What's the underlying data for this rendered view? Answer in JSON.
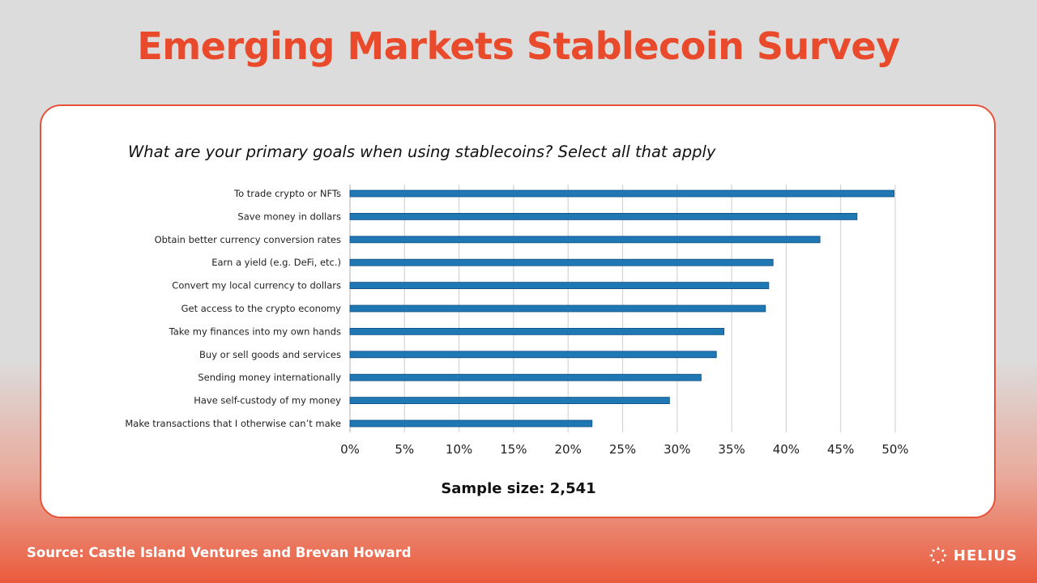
{
  "slide": {
    "title": "Emerging Markets Stablecoin Survey",
    "question": "What are your primary goals when using stablecoins? Select all that apply",
    "sample_size": "Sample size: 2,541",
    "source": "Source: Castle Island Ventures and Brevan Howard",
    "brand": "HELIUS",
    "brand_icon": "sun-burst-icon"
  },
  "colors": {
    "title": "#ea4a2c",
    "bar_fill": "#1f77b4",
    "bar_stroke": "#0f4f85",
    "card_border": "#e8523a",
    "gridline": "#d4d4d4"
  },
  "chart_data": {
    "type": "bar",
    "orientation": "horizontal",
    "title": "",
    "xlabel": "",
    "ylabel": "",
    "xlim": [
      0,
      50
    ],
    "x_ticks": [
      0,
      5,
      10,
      15,
      20,
      25,
      30,
      35,
      40,
      45,
      50
    ],
    "x_tick_labels": [
      "0%",
      "5%",
      "10%",
      "15%",
      "20%",
      "25%",
      "30%",
      "35%",
      "40%",
      "45%",
      "50%"
    ],
    "grid": true,
    "categories": [
      "To trade crypto or NFTs",
      "Save money in dollars",
      "Obtain better currency conversion rates",
      "Earn a yield (e.g. DeFi, etc.)",
      "Convert my local currency to dollars",
      "Get access to the crypto economy",
      "Take my finances into my own hands",
      "Buy or sell goods and services",
      "Sending money internationally",
      "Have self-custody of my money",
      "Make transactions that I otherwise can’t make"
    ],
    "values": [
      49.9,
      46.5,
      43.1,
      38.8,
      38.4,
      38.1,
      34.3,
      33.6,
      32.2,
      29.3,
      22.2
    ]
  }
}
